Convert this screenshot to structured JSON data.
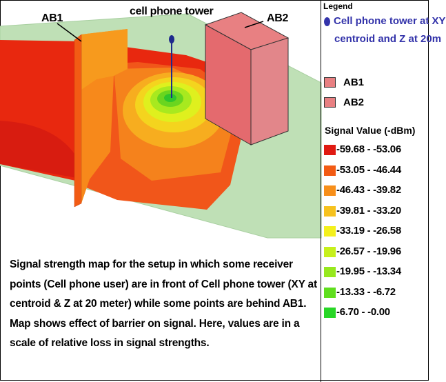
{
  "labels": {
    "ab1": "AB1",
    "ab2": "AB2",
    "tower": "cell phone tower"
  },
  "caption": "Signal strength map for the setup in which some receiver points (Cell phone user) are in front of Cell phone tower (XY at centroid & Z at 20 meter) while some points are behind AB1. Map shows effect of barrier on signal. Here, values are in a scale of relative loss in signal strengths.",
  "legend": {
    "title": "Legend",
    "tower_line1": "Cell phone tower at XY",
    "tower_line2": "centroid and Z at 20m",
    "tower_color": "#3333aa",
    "buildings": [
      {
        "label": "AB1",
        "color": "#e88082"
      },
      {
        "label": "AB2",
        "color": "#e88082"
      }
    ],
    "signal_title": "Signal Value (-dBm)",
    "classes": [
      {
        "range": "-59.68 -  -53.06",
        "color": "#e01a12"
      },
      {
        "range": "-53.05 -  -46.44",
        "color": "#f25b14"
      },
      {
        "range": "-46.43 -  -39.82",
        "color": "#f78f1a"
      },
      {
        "range": "-39.81 -  -33.20",
        "color": "#f6c21e"
      },
      {
        "range": "-33.19 -  -26.58",
        "color": "#f4f01c"
      },
      {
        "range": "-26.57 -  -19.96",
        "color": "#c6f01c"
      },
      {
        "range": "-19.95 -  -13.34",
        "color": "#97e81e"
      },
      {
        "range": "-13.33 -  -6.72",
        "color": "#5fde1e"
      },
      {
        "range": "-6.70 -  -0.00",
        "color": "#28d626"
      }
    ]
  }
}
